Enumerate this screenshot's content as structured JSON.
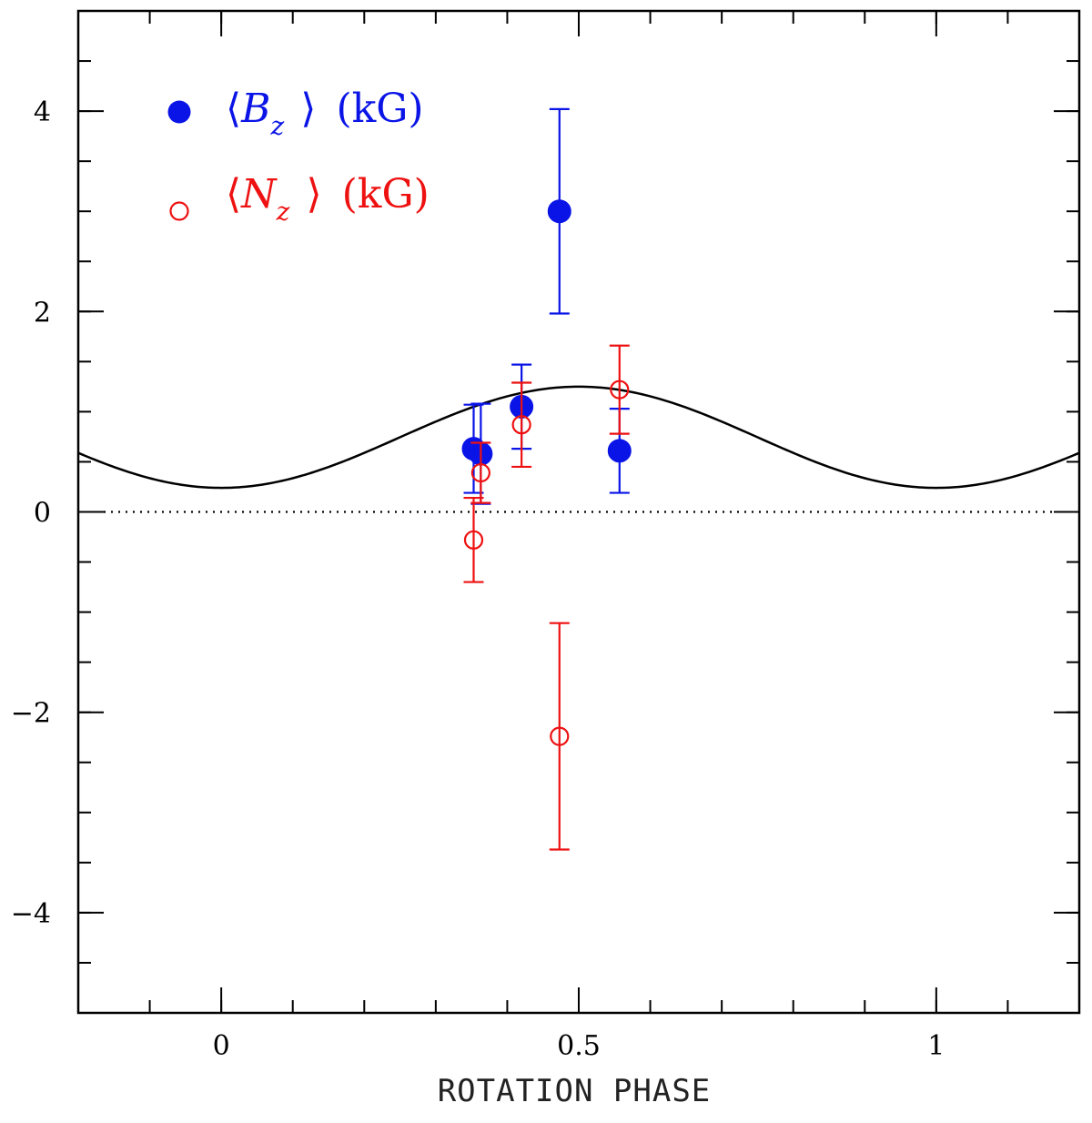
{
  "chart_data": {
    "type": "scatter",
    "title": "",
    "xlabel": "ROTATION PHASE",
    "ylabel": "",
    "xlim": [
      -0.2,
      1.2
    ],
    "ylim": [
      -5,
      5
    ],
    "x_ticks": [
      0,
      0.5,
      1
    ],
    "x_tick_labels": [
      "0",
      "0.5",
      "1"
    ],
    "y_ticks": [
      -4,
      -2,
      0,
      2,
      4
    ],
    "y_tick_labels": [
      "−4",
      "−2",
      "0",
      "2",
      "4"
    ],
    "x_minor_step": 0.1,
    "y_minor_step": 0.5,
    "zero_line": true,
    "grid": false,
    "legend_position": "top-left",
    "series": [
      {
        "name": "⟨B_z⟩ (kG)",
        "legend_parts": {
          "open": "⟨",
          "symbol": "B",
          "sub": "z",
          "close": "⟩",
          "unit": "(kG)"
        },
        "marker": "filled-circle",
        "color": "#0a14e6",
        "x": [
          0.353,
          0.363,
          0.42,
          0.473,
          0.557
        ],
        "y": [
          0.63,
          0.58,
          1.05,
          3.0,
          0.61
        ],
        "err": [
          0.44,
          0.5,
          0.42,
          1.02,
          0.42
        ]
      },
      {
        "name": "⟨N_z⟩ (kG)",
        "legend_parts": {
          "open": "⟨",
          "symbol": "N",
          "sub": "z",
          "close": "⟩",
          "unit": "(kG)"
        },
        "marker": "open-circle",
        "color": "#ee1111",
        "x": [
          0.353,
          0.363,
          0.42,
          0.473,
          0.557
        ],
        "y": [
          -0.28,
          0.39,
          0.87,
          -2.24,
          1.22
        ],
        "err": [
          0.42,
          0.3,
          0.42,
          1.13,
          0.44
        ]
      }
    ],
    "model_curve": {
      "name": "fit",
      "color": "#000000",
      "form": "a - b*cos(2*pi*phase)",
      "a": 0.745,
      "b": 0.505
    }
  }
}
